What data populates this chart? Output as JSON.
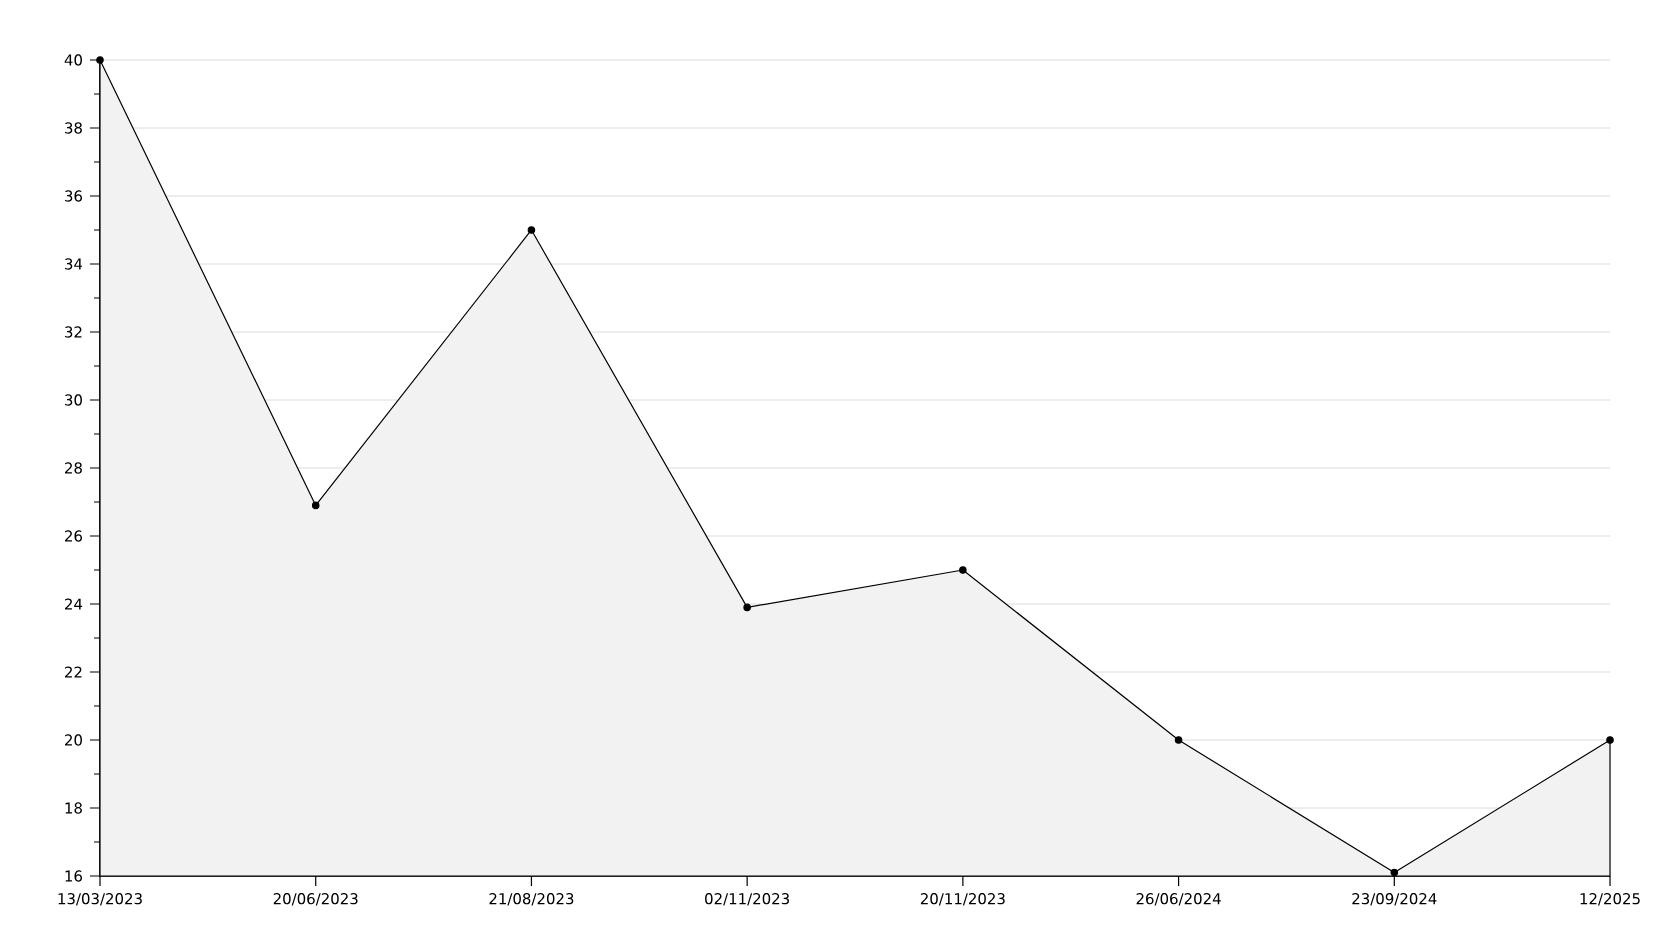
{
  "chart_data": {
    "type": "area",
    "categories": [
      "13/03/2023",
      "20/06/2023",
      "21/08/2023",
      "02/11/2023",
      "20/11/2023",
      "26/06/2024",
      "23/09/2024",
      "12/2025"
    ],
    "series": [
      {
        "color": "#000000",
        "values": [
          40,
          26.9,
          35,
          23.9,
          25,
          20,
          16.1,
          20
        ]
      }
    ],
    "ylim": [
      16,
      40
    ],
    "yticks": [
      16,
      18,
      20,
      22,
      24,
      26,
      28,
      30,
      32,
      34,
      36,
      38,
      40
    ],
    "grid": "y",
    "marker": "circle",
    "line_style": "solid"
  }
}
